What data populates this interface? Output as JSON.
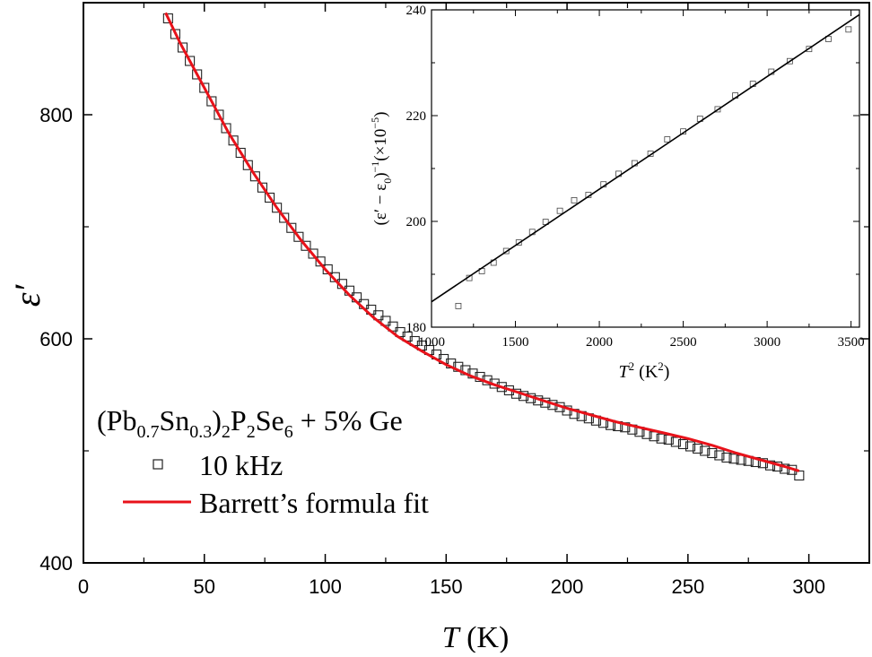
{
  "chart_data": [
    {
      "type": "scatter",
      "xlabel": "T (K)",
      "xlabel_var": "T",
      "xlabel_unit": "(K)",
      "ylabel": "ε′",
      "xlim": [
        0,
        325
      ],
      "ylim": [
        400,
        900
      ],
      "xticks": [
        0,
        50,
        100,
        150,
        200,
        250,
        300
      ],
      "yticks": [
        400,
        600,
        800
      ],
      "legend": {
        "position": "bottom-left",
        "title_parts": [
          "(Pb",
          "0.7",
          "Sn",
          "0.3",
          ")",
          "2",
          "P",
          "2",
          "Se",
          "6",
          " + 5% Ge"
        ],
        "entries": [
          {
            "label": "10 kHz",
            "marker": "open-square",
            "color": "#000000"
          },
          {
            "label": "Barrett’s formula fit",
            "marker": "line",
            "color": "#e8121a"
          }
        ]
      },
      "series": [
        {
          "name": "10 kHz",
          "marker": "open-square",
          "x": [
            35,
            38,
            41,
            44,
            47,
            50,
            53,
            56,
            59,
            62,
            65,
            68,
            71,
            74,
            77,
            80,
            83,
            86,
            89,
            92,
            95,
            98,
            101,
            104,
            107,
            110,
            113,
            116,
            119,
            122,
            125,
            128,
            131,
            134,
            137,
            140,
            143,
            146,
            149,
            152,
            155,
            158,
            161,
            164,
            167,
            170,
            173,
            176,
            179,
            182,
            185,
            188,
            191,
            194,
            197,
            200,
            203,
            206,
            209,
            212,
            215,
            218,
            221,
            224,
            227,
            230,
            233,
            236,
            239,
            242,
            245,
            248,
            251,
            254,
            257,
            260,
            263,
            266,
            269,
            272,
            275,
            278,
            281,
            284,
            287,
            290,
            293,
            296
          ],
          "y": [
            886,
            872,
            860,
            848,
            836,
            824,
            812,
            800,
            788,
            777,
            766,
            755,
            745,
            735,
            726,
            717,
            708,
            699,
            691,
            683,
            676,
            669,
            662,
            655,
            649,
            643,
            637,
            631,
            626,
            621,
            616,
            611,
            606,
            602,
            598,
            594,
            590,
            586,
            582,
            578,
            575,
            572,
            569,
            566,
            563,
            560,
            557,
            554,
            551,
            549,
            547,
            545,
            543,
            541,
            539,
            536,
            533,
            531,
            529,
            527,
            525,
            523,
            522,
            521,
            519,
            517,
            515,
            513,
            511,
            510,
            508,
            506,
            504,
            502,
            500,
            498,
            496,
            494,
            493,
            492,
            491,
            490,
            489,
            487,
            486,
            484,
            483,
            478
          ]
        },
        {
          "name": "Barrett’s formula fit",
          "style": "line",
          "color": "#e8121a",
          "x": [
            34,
            40,
            50,
            60,
            70,
            80,
            90,
            100,
            110,
            120,
            130,
            140,
            150,
            160,
            170,
            180,
            190,
            200,
            210,
            220,
            230,
            240,
            250,
            260,
            270,
            280,
            290,
            296
          ],
          "y": [
            891,
            864,
            824,
            784,
            749,
            717,
            688,
            662,
            639,
            619,
            602,
            589,
            577,
            567,
            559,
            552,
            545,
            538,
            532,
            526,
            521,
            516,
            511,
            505,
            498,
            492,
            486,
            482
          ]
        }
      ]
    },
    {
      "type": "scatter",
      "xlabel": "T² (K²)",
      "xlabel_var": "T",
      "xlabel_sup": "2",
      "xlabel_unit_parts": [
        "(K",
        "2",
        ")"
      ],
      "ylabel_parts": [
        "(ε′ − ε",
        "0",
        ")",
        "−1",
        "(×10",
        "−5",
        ")"
      ],
      "xlim": [
        1000,
        3550
      ],
      "ylim": [
        180,
        240
      ],
      "xticks": [
        1000,
        1500,
        2000,
        2500,
        3000,
        3500
      ],
      "yticks": [
        180,
        200,
        220,
        240
      ],
      "series": [
        {
          "name": "",
          "marker": "open-square",
          "x": [
            1160,
            1225,
            1300,
            1370,
            1445,
            1520,
            1600,
            1680,
            1765,
            1850,
            1935,
            2025,
            2115,
            2210,
            2305,
            2405,
            2500,
            2600,
            2705,
            2810,
            2915,
            3025,
            3135,
            3250,
            3365,
            3485
          ],
          "y": [
            184.0,
            189.3,
            190.6,
            192.2,
            194.4,
            196.0,
            198.0,
            199.9,
            202.0,
            204.0,
            205.0,
            207.0,
            209.0,
            211.0,
            212.8,
            215.5,
            217.0,
            219.4,
            221.2,
            223.8,
            226.0,
            228.3,
            230.3,
            232.6,
            234.5,
            236.3
          ]
        },
        {
          "name": "",
          "style": "line",
          "color": "#000000",
          "x": [
            1000,
            3550
          ],
          "y": [
            184.8,
            239.1
          ]
        }
      ]
    }
  ]
}
